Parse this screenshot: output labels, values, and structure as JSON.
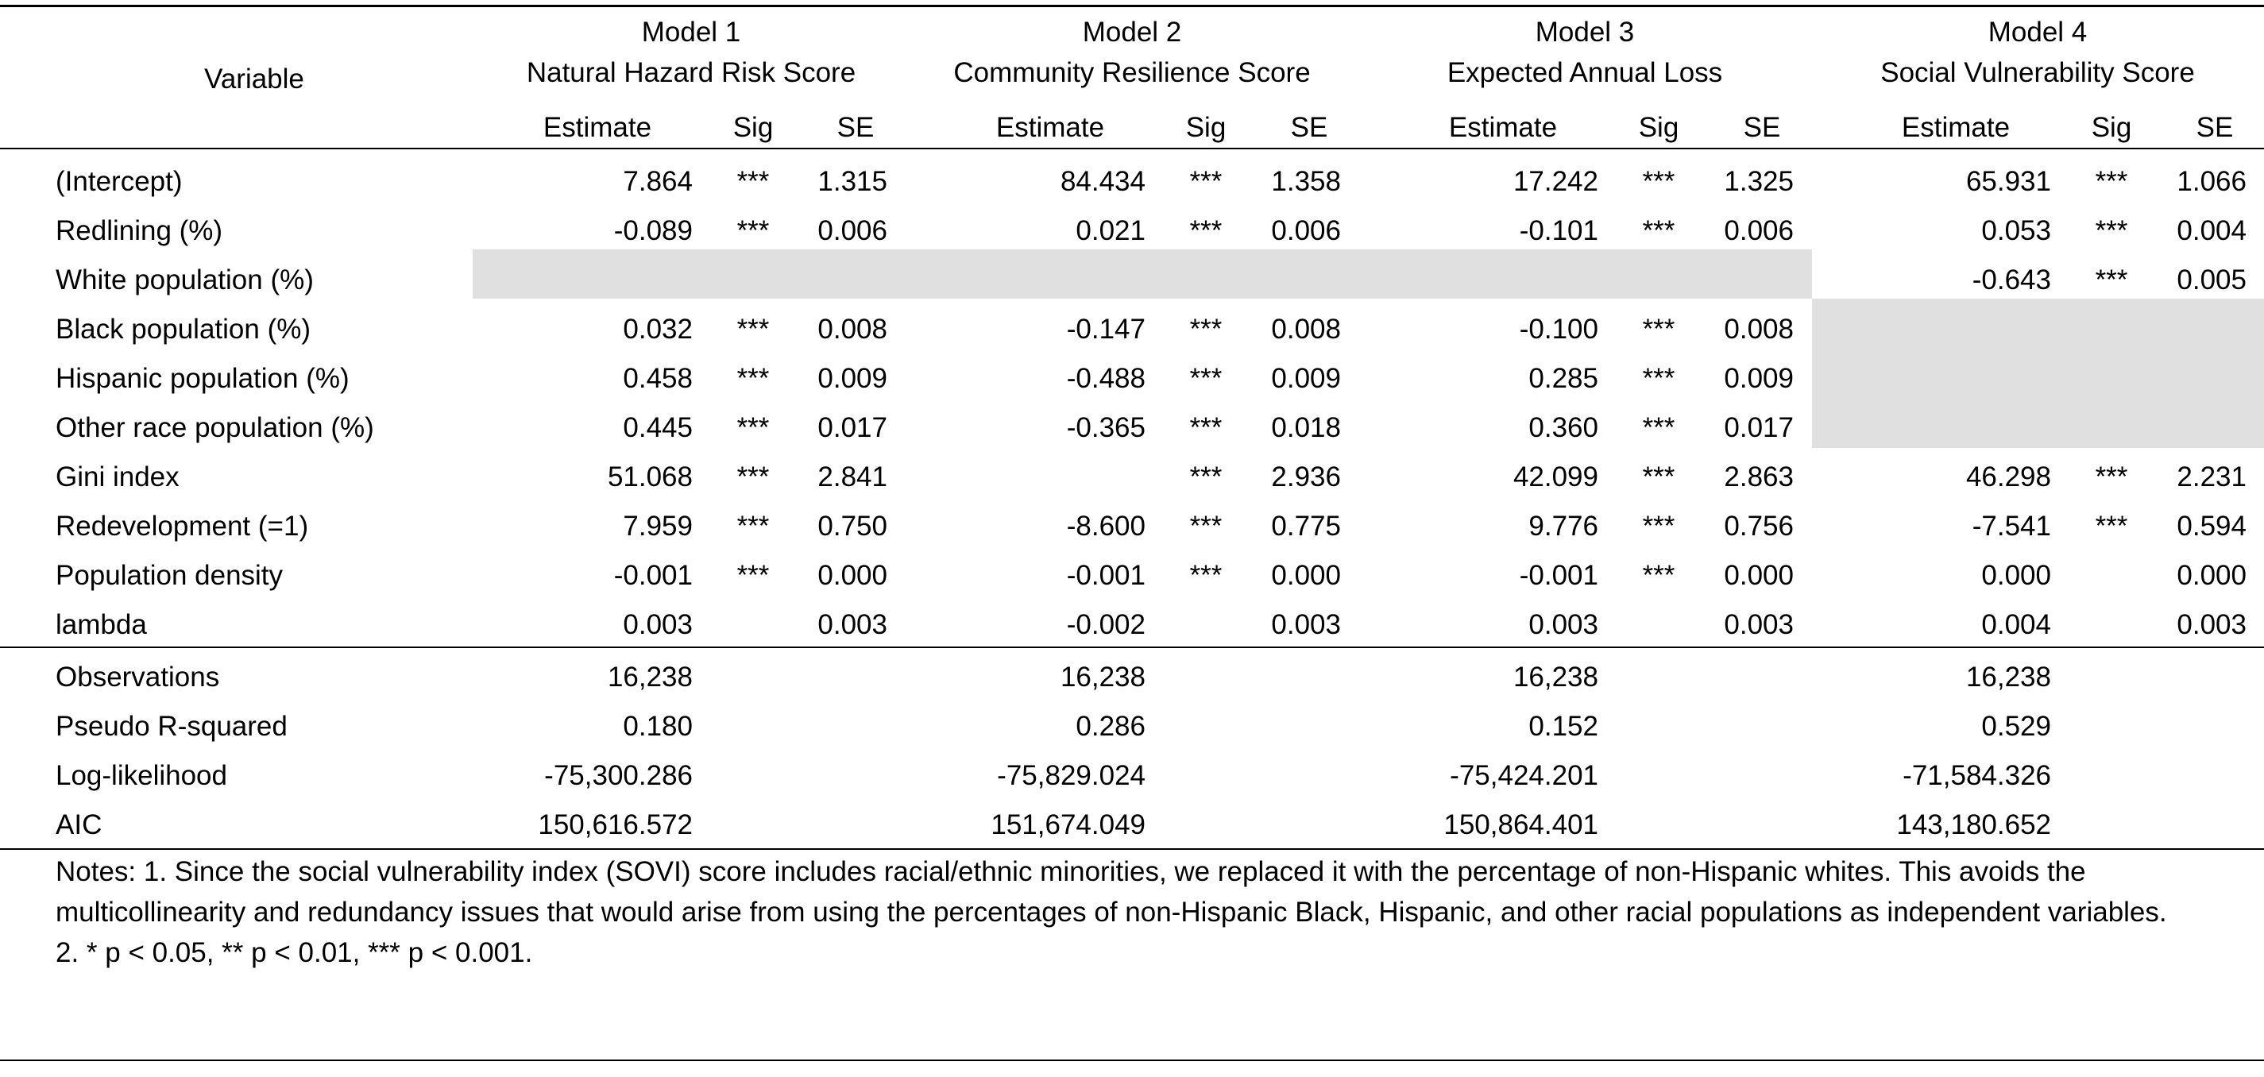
{
  "header": {
    "variable_label": "Variable",
    "models": [
      {
        "model_label": "Model 1",
        "dependent": "Natural Hazard Risk Score"
      },
      {
        "model_label": "Model 2",
        "dependent": "Community Resilience Score"
      },
      {
        "model_label": "Model 3",
        "dependent": "Expected Annual Loss"
      },
      {
        "model_label": "Model 4",
        "dependent": "Social Vulnerability Score"
      }
    ],
    "col_labels": {
      "estimate": "Estimate",
      "sig": "Sig",
      "se": "SE"
    }
  },
  "rows": [
    {
      "variable": "(Intercept)",
      "cells": [
        {
          "est": "7.864",
          "sig": "***",
          "se": "1.315"
        },
        {
          "est": "84.434",
          "sig": "***",
          "se": "1.358"
        },
        {
          "est": "17.242",
          "sig": "***",
          "se": "1.325"
        },
        {
          "est": "65.931",
          "sig": "***",
          "se": "1.066"
        }
      ]
    },
    {
      "variable": "Redlining (%)",
      "cells": [
        {
          "est": "-0.089",
          "sig": "***",
          "se": "0.006"
        },
        {
          "est": "0.021",
          "sig": "***",
          "se": "0.006"
        },
        {
          "est": "-0.101",
          "sig": "***",
          "se": "0.006"
        },
        {
          "est": "0.053",
          "sig": "***",
          "se": "0.004"
        }
      ]
    },
    {
      "variable": "White population (%)",
      "cells": [
        {
          "est": "",
          "sig": "",
          "se": ""
        },
        {
          "est": "",
          "sig": "",
          "se": ""
        },
        {
          "est": "",
          "sig": "",
          "se": ""
        },
        {
          "est": "-0.643",
          "sig": "***",
          "se": "0.005"
        }
      ]
    },
    {
      "variable": "Black population (%)",
      "cells": [
        {
          "est": "0.032",
          "sig": "***",
          "se": "0.008"
        },
        {
          "est": "-0.147",
          "sig": "***",
          "se": "0.008"
        },
        {
          "est": "-0.100",
          "sig": "***",
          "se": "0.008"
        },
        {
          "est": "",
          "sig": "",
          "se": ""
        }
      ]
    },
    {
      "variable": "Hispanic population (%)",
      "cells": [
        {
          "est": "0.458",
          "sig": "***",
          "se": "0.009"
        },
        {
          "est": "-0.488",
          "sig": "***",
          "se": "0.009"
        },
        {
          "est": "0.285",
          "sig": "***",
          "se": "0.009"
        },
        {
          "est": "",
          "sig": "",
          "se": ""
        }
      ]
    },
    {
      "variable": "Other race population (%)",
      "cells": [
        {
          "est": "0.445",
          "sig": "***",
          "se": "0.017"
        },
        {
          "est": "-0.365",
          "sig": "***",
          "se": "0.018"
        },
        {
          "est": "0.360",
          "sig": "***",
          "se": "0.017"
        },
        {
          "est": "",
          "sig": "",
          "se": ""
        }
      ]
    },
    {
      "variable": "Gini index",
      "cells": [
        {
          "est": "51.068",
          "sig": "***",
          "se": "2.841"
        },
        {
          "est": "",
          "sig": "***",
          "se": "2.936"
        },
        {
          "est": "42.099",
          "sig": "***",
          "se": "2.863"
        },
        {
          "est": "46.298",
          "sig": "***",
          "se": "2.231"
        }
      ]
    },
    {
      "variable": "Redevelopment (=1)",
      "cells": [
        {
          "est": "7.959",
          "sig": "***",
          "se": "0.750"
        },
        {
          "est": "-8.600",
          "sig": "***",
          "se": "0.775"
        },
        {
          "est": "9.776",
          "sig": "***",
          "se": "0.756"
        },
        {
          "est": "-7.541",
          "sig": "***",
          "se": "0.594"
        }
      ]
    },
    {
      "variable": "Population density",
      "cells": [
        {
          "est": "-0.001",
          "sig": "***",
          "se": "0.000"
        },
        {
          "est": "-0.001",
          "sig": "***",
          "se": "0.000"
        },
        {
          "est": "-0.001",
          "sig": "***",
          "se": "0.000"
        },
        {
          "est": "0.000",
          "sig": "",
          "se": "0.000"
        }
      ]
    },
    {
      "variable": "lambda",
      "cells": [
        {
          "est": "0.003",
          "sig": "",
          "se": "0.003"
        },
        {
          "est": "-0.002",
          "sig": "",
          "se": "0.003"
        },
        {
          "est": "0.003",
          "sig": "",
          "se": "0.003"
        },
        {
          "est": "0.004",
          "sig": "",
          "se": "0.003"
        }
      ]
    }
  ],
  "stats": [
    {
      "label": "Observations",
      "values": [
        "16,238",
        "16,238",
        "16,238",
        "16,238"
      ]
    },
    {
      "label": "Pseudo R-squared",
      "values": [
        "0.180",
        "0.286",
        "0.152",
        "0.529"
      ]
    },
    {
      "label": "Log-likelihood",
      "values": [
        "-75,300.286",
        "-75,829.024",
        "-75,424.201",
        "-71,584.326"
      ]
    },
    {
      "label": "AIC",
      "values": [
        "150,616.572",
        "151,674.049",
        "150,864.401",
        "143,180.652"
      ]
    }
  ],
  "notes": {
    "note1": "Notes: 1. Since the social vulnerability index (SOVI) score includes racial/ethnic minorities, we replaced it with the percentage of non-Hispanic whites. This avoids the multicollinearity and redundancy issues that would arise from using the percentages of non-Hispanic Black, Hispanic, and other racial populations as independent variables.",
    "note2": "2. * p < 0.05, ** p < 0.01, *** p < 0.001."
  },
  "colors": {
    "shade": "#e0e0e0",
    "rule": "#000000"
  }
}
